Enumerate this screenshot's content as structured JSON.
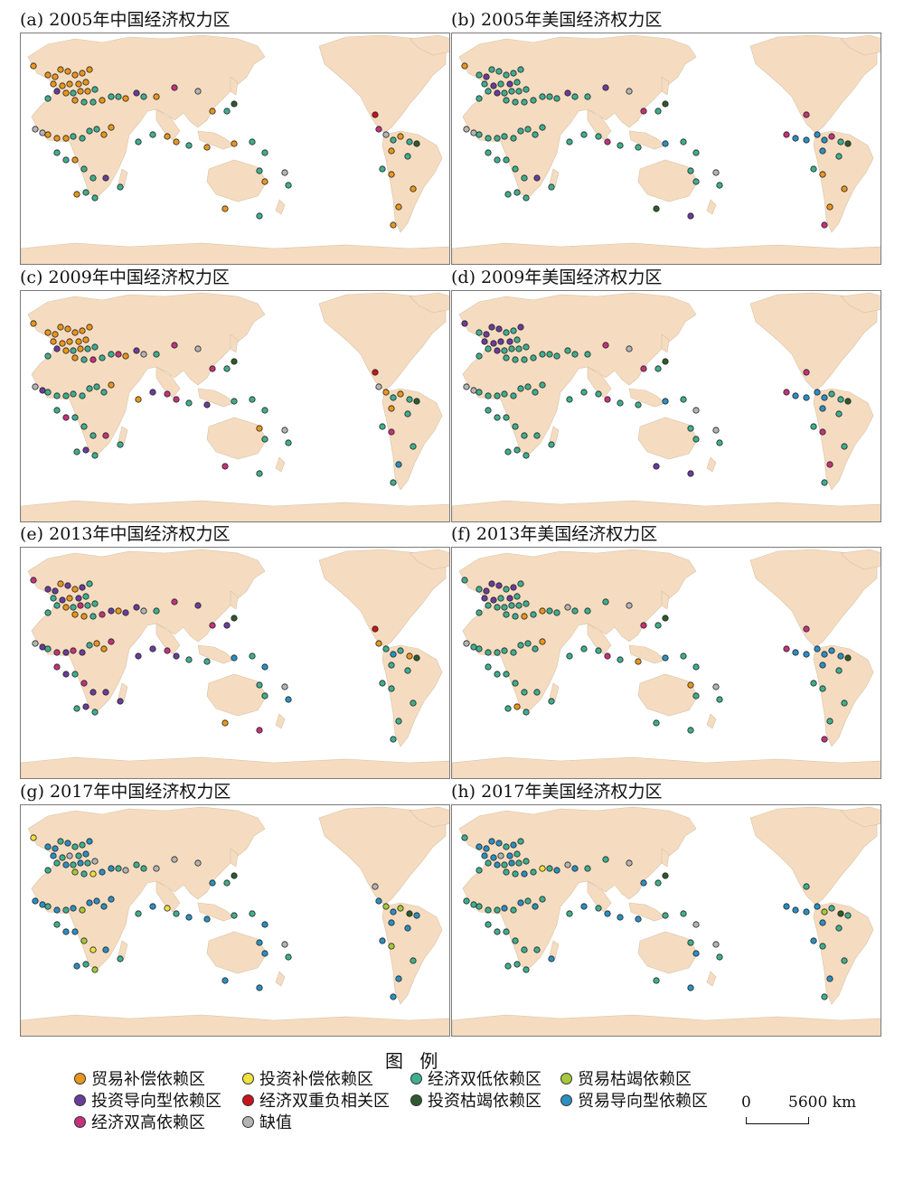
{
  "panels": [
    {
      "id": "a",
      "title": "(a) 2005年中国经济权力区"
    },
    {
      "id": "b",
      "title": "(b) 2005年美国经济权力区"
    },
    {
      "id": "c",
      "title": "(c) 2009年中国经济权力区"
    },
    {
      "id": "d",
      "title": "(d) 2009年美国经济权力区"
    },
    {
      "id": "e",
      "title": "(e) 2013年中国经济权力区"
    },
    {
      "id": "f",
      "title": "(f) 2013年美国经济权力区"
    },
    {
      "id": "g",
      "title": "(g) 2017年中国经济权力区"
    },
    {
      "id": "h",
      "title": "(h) 2017年美国经济权力区"
    }
  ],
  "legend": {
    "title": "图 例",
    "items": [
      {
        "label": "贸易补偿依赖区",
        "color": "#e8961e"
      },
      {
        "label": "投资补偿依赖区",
        "color": "#f0e040"
      },
      {
        "label": "经济双低依赖区",
        "color": "#3fae8f"
      },
      {
        "label": "贸易枯竭依赖区",
        "color": "#a6c83a"
      },
      {
        "label": "投资导向型依赖区",
        "color": "#6a3d9a"
      },
      {
        "label": "经济双重负相关区",
        "color": "#c8141e"
      },
      {
        "label": "投资枯竭依赖区",
        "color": "#2f5a2e"
      },
      {
        "label": "贸易导向型依赖区",
        "color": "#2b8fc2"
      },
      {
        "label": "经济双高依赖区",
        "color": "#c2337a"
      },
      {
        "label": "缺值",
        "color": "#b4b4b4"
      }
    ]
  },
  "scale": {
    "start": "0",
    "end": "5600 km"
  },
  "colors": {
    "land": "#f5dcc0",
    "ocean": "#ffffff",
    "frame": "#7a7a7a"
  }
}
